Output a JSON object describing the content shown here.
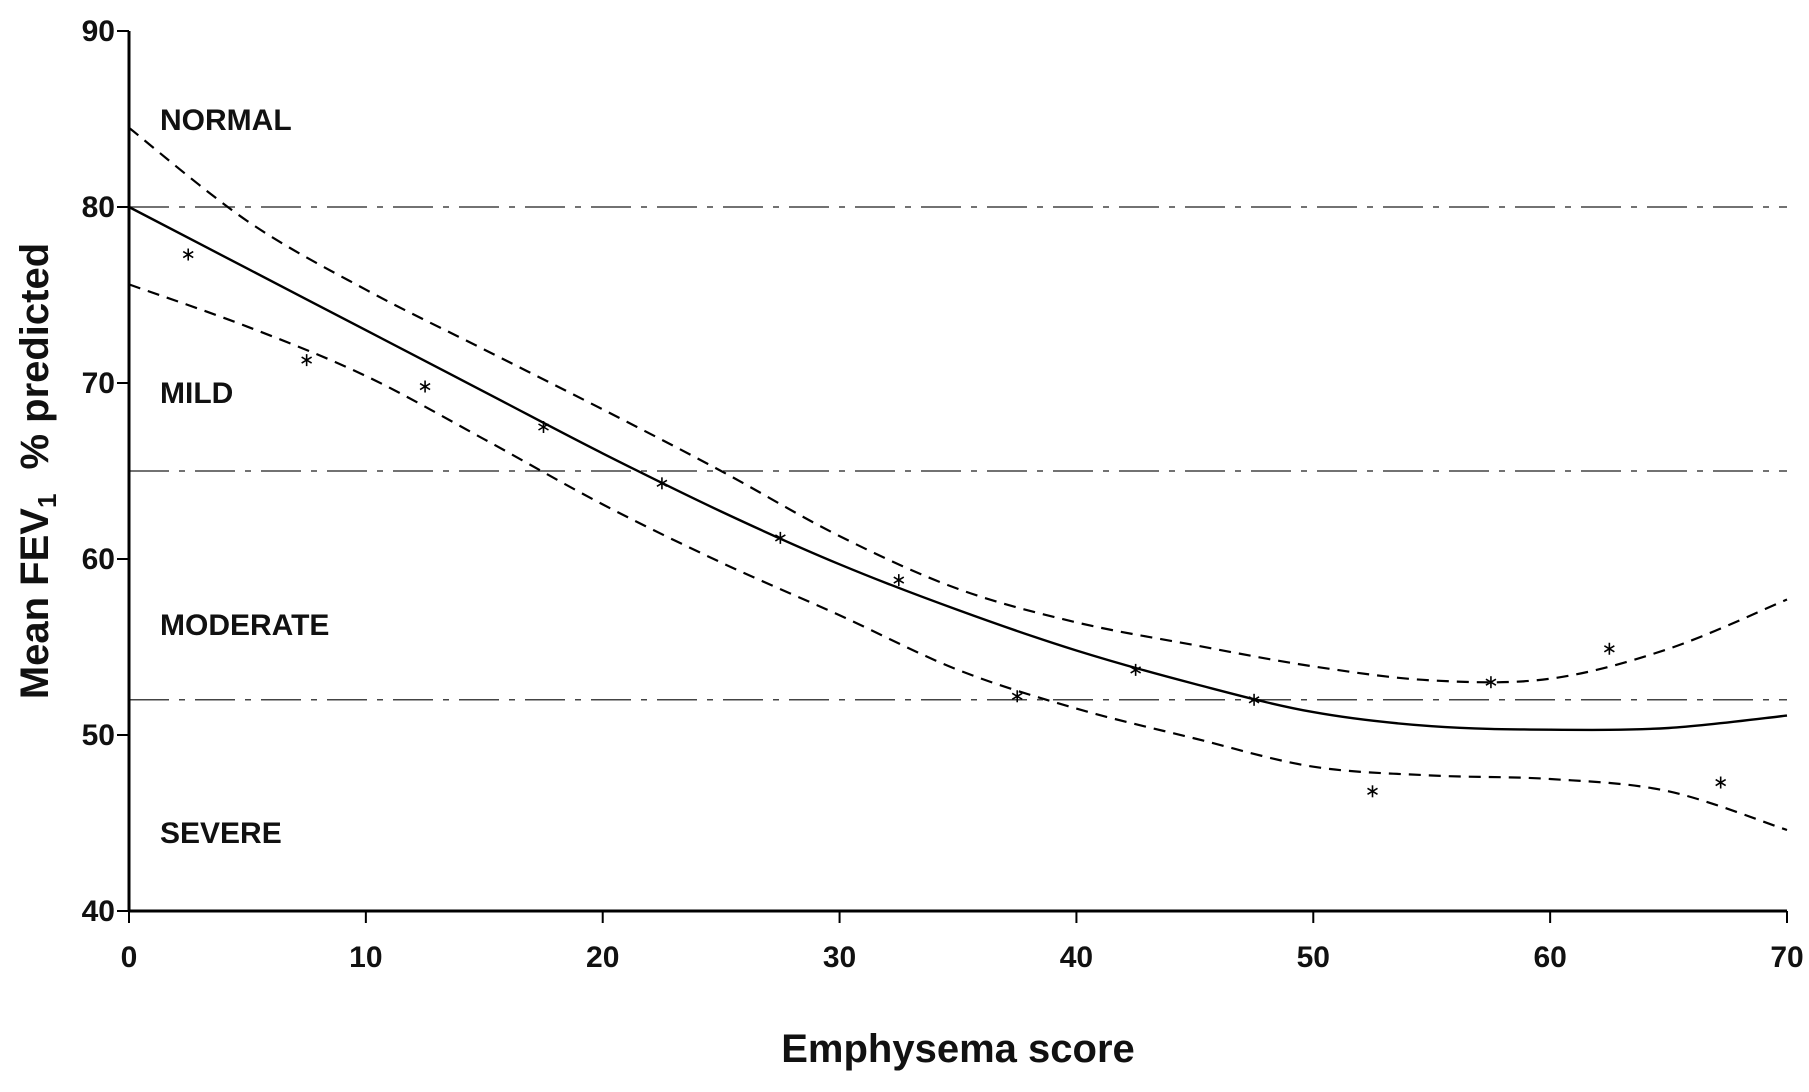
{
  "chart_data": {
    "type": "line",
    "xlabel": "Emphysema score",
    "ylabel": "Mean FEV",
    "ylabel_sub": "1",
    "ylabel_suffix": "% predicted",
    "xlim": [
      0,
      70
    ],
    "ylim": [
      40,
      90
    ],
    "x_ticks": [
      0,
      10,
      20,
      30,
      40,
      50,
      60,
      70
    ],
    "y_ticks": [
      40,
      50,
      60,
      70,
      80,
      90
    ],
    "x_tick_labels": [
      "0",
      "10",
      "20",
      "30",
      "40",
      "50",
      "60",
      "70"
    ],
    "y_tick_labels": [
      "40",
      "50",
      "60",
      "70",
      "80",
      "90"
    ],
    "grid": false,
    "thresholds": [
      80,
      65,
      52
    ],
    "bands": [
      {
        "label": "NORMAL",
        "y": 85
      },
      {
        "label": "MILD",
        "y": 69.5
      },
      {
        "label": "MODERATE",
        "y": 56.3
      },
      {
        "label": "SEVERE",
        "y": 44.5
      }
    ],
    "series": [
      {
        "style": "solid",
        "x": [
          0,
          5,
          10,
          15,
          20,
          25,
          30,
          35,
          40,
          45,
          50,
          55,
          60,
          65,
          70
        ],
        "y": [
          80,
          76.5,
          73,
          69.5,
          66,
          62.7,
          59.7,
          57.1,
          54.8,
          52.9,
          51.3,
          50.5,
          50.3,
          50.4,
          51.1
        ]
      },
      {
        "style": "dashed",
        "x": [
          0,
          5,
          10,
          15,
          20,
          25,
          30,
          35,
          40,
          45,
          50,
          55,
          60,
          65,
          70
        ],
        "y": [
          84.5,
          79.2,
          75.3,
          71.9,
          68.5,
          65,
          61.3,
          58.3,
          56.4,
          55.1,
          53.9,
          53.1,
          53.2,
          54.9,
          57.7
        ]
      },
      {
        "style": "dashed",
        "x": [
          0,
          5,
          10,
          15,
          20,
          25,
          30,
          35,
          40,
          45,
          50,
          55,
          60,
          65,
          70
        ],
        "y": [
          75.6,
          73.2,
          70.4,
          66.8,
          63.1,
          59.8,
          56.8,
          53.7,
          51.5,
          49.8,
          48.2,
          47.7,
          47.5,
          46.8,
          44.6
        ]
      },
      {
        "style": "points",
        "x": [
          2.5,
          7.5,
          12.5,
          17.5,
          22.5,
          27.5,
          32.5,
          37.5,
          42.5,
          47.5,
          52.5,
          57.5,
          62.5,
          67.2
        ],
        "y": [
          77.3,
          71.3,
          69.8,
          67.5,
          64.3,
          61.2,
          58.8,
          52.2,
          53.7,
          52,
          46.8,
          53,
          54.9,
          47.3
        ]
      }
    ]
  }
}
